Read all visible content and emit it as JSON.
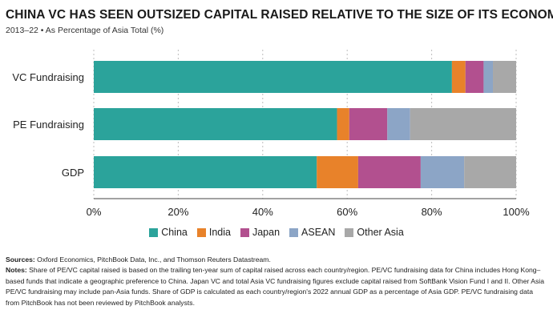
{
  "title": "CHINA VC HAS SEEN OUTSIZED CAPITAL RAISED RELATIVE TO THE SIZE OF ITS ECONOMY",
  "subtitle": "2013–22 • As Percentage of Asia Total (%)",
  "chart_data": {
    "type": "bar",
    "orientation": "horizontal",
    "stacked": true,
    "categories": [
      "VC Fundraising",
      "PE Fundraising",
      "GDP"
    ],
    "series": [
      {
        "name": "China",
        "color": "#2ba39b",
        "values": [
          84.8,
          57.6,
          52.8
        ]
      },
      {
        "name": "India",
        "color": "#e8822a",
        "values": [
          3.2,
          2.9,
          9.8
        ]
      },
      {
        "name": "Japan",
        "color": "#b2508f",
        "values": [
          4.3,
          9.0,
          14.8
        ]
      },
      {
        "name": "ASEAN",
        "color": "#8ca5c6",
        "values": [
          2.2,
          5.4,
          10.3
        ]
      },
      {
        "name": "Other Asia",
        "color": "#a8a8a8",
        "values": [
          5.5,
          25.1,
          12.3
        ]
      }
    ],
    "xlim": [
      0,
      100
    ],
    "xticks": [
      0,
      20,
      40,
      60,
      80,
      100
    ],
    "xtick_format": "%",
    "grid": "vertical dashed",
    "legend": "bottom-center"
  },
  "notes": {
    "sources_label": "Sources:",
    "sources_text": "Oxford Economics, PitchBook Data, Inc., and Thomson Reuters Datastream.",
    "notes_label": "Notes:",
    "notes_text": "Share of PE/VC capital raised is based on the trailing ten-year sum of capital raised across each country/region. PE/VC fundraising data for China includes Hong Kong–based funds that indicate a geographic preference to China. Japan VC and total Asia VC fundraising figures exclude capital raised from SoftBank Vision Fund I and II. Other Asia PE/VC fundraising may include pan-Asia funds. Share of GDP is calculated as each country/region's 2022 annual GDP as a percentage of Asia GDP. PE/VC fundraising data from PitchBook has not been reviewed by PitchBook analysts."
  }
}
